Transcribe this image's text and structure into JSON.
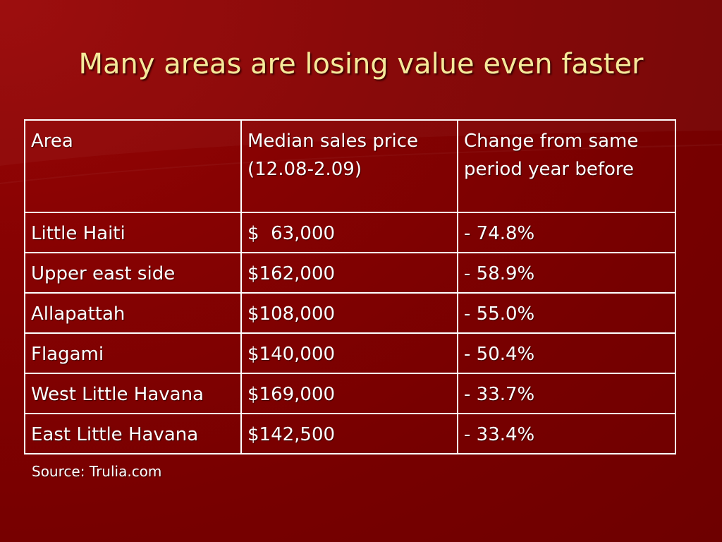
{
  "slide": {
    "title": "Many areas are losing value even faster",
    "source": "Source: Trulia.com"
  },
  "table": {
    "headers": [
      "Area",
      "Median sales price (12.08-2.09)",
      "Change from same period year before"
    ],
    "rows": [
      {
        "area": "Little Haiti",
        "price": "$  63,000",
        "change": "- 74.8%"
      },
      {
        "area": "Upper east side",
        "price": "$162,000",
        "change": "- 58.9%"
      },
      {
        "area": "Allapattah",
        "price": "$108,000",
        "change": "- 55.0%"
      },
      {
        "area": "Flagami",
        "price": "$140,000",
        "change": "- 50.4%"
      },
      {
        "area": "West Little Havana",
        "price": "$169,000",
        "change": "- 33.7%"
      },
      {
        "area": "East Little Havana",
        "price": "$142,500",
        "change": "- 33.4%"
      }
    ]
  },
  "colors": {
    "background": "#7d0000",
    "title_text": "#f5e99a",
    "body_text": "#ffffff"
  }
}
